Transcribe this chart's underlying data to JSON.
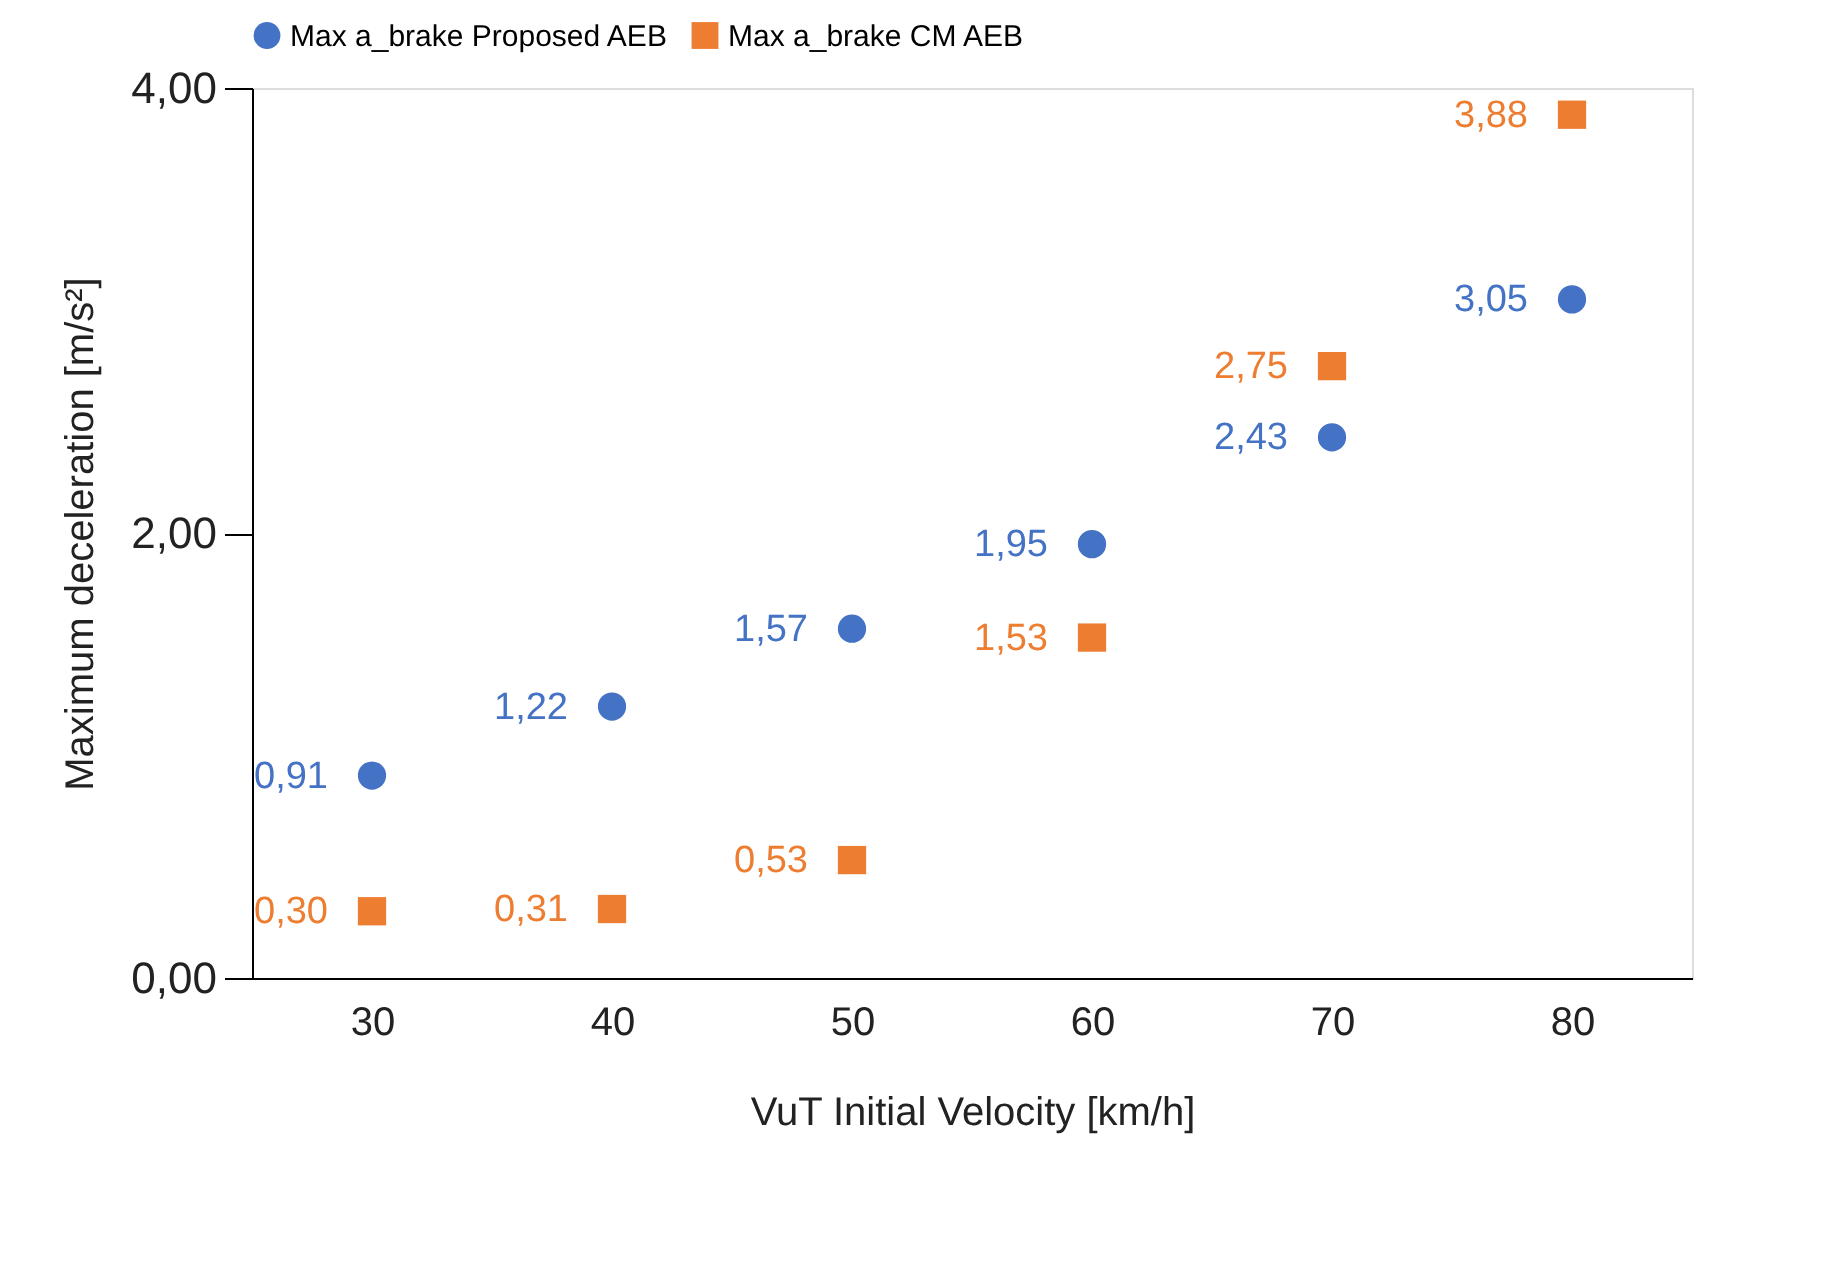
{
  "chart_data": {
    "type": "scatter",
    "xlabel": "VuT Initial Velocity [km/h]",
    "ylabel": "Maximum deceleration [m/s²]",
    "x": [
      30,
      40,
      50,
      60,
      70,
      80
    ],
    "series": [
      {
        "name": "Max a_brake Proposed AEB",
        "color": "#4472c4",
        "marker": "circle",
        "values": [
          0.91,
          1.22,
          1.57,
          1.95,
          2.43,
          3.05
        ],
        "value_labels": [
          "0,91",
          "1,22",
          "1,57",
          "1,95",
          "2,43",
          "3,05"
        ]
      },
      {
        "name": "Max a_brake CM AEB",
        "color": "#ed7d31",
        "marker": "square",
        "values": [
          0.3,
          0.31,
          0.53,
          1.53,
          2.75,
          3.88
        ],
        "value_labels": [
          "0,30",
          "0,31",
          "0,53",
          "1,53",
          "2,75",
          "3,88"
        ]
      }
    ],
    "xlim": [
      25,
      85
    ],
    "xticks": [
      30,
      40,
      50,
      60,
      70,
      80
    ],
    "ylim": [
      0,
      4
    ],
    "yticks": [
      {
        "value": 0,
        "label": "0,00"
      },
      {
        "value": 2,
        "label": "2,00"
      },
      {
        "value": 4,
        "label": "4,00"
      }
    ],
    "grid": false,
    "legend": "top"
  }
}
